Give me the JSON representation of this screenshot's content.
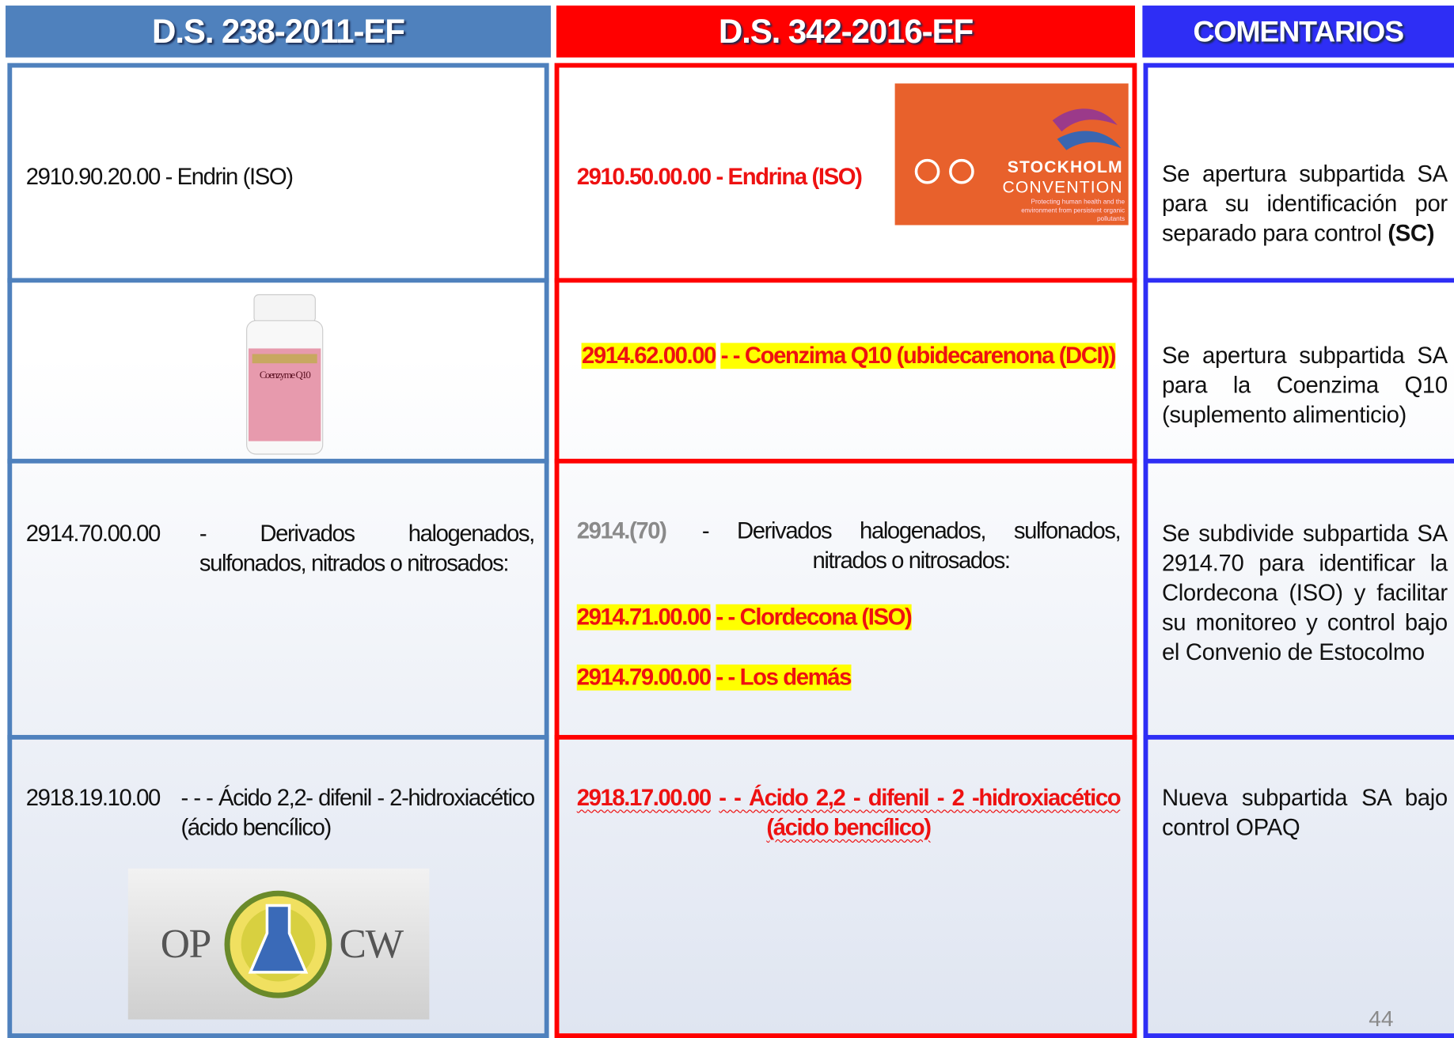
{
  "header": {
    "columns": [
      "D.S. 238-2011-EF",
      "D.S. 342-2016-EF",
      "COMENTARIOS"
    ]
  },
  "rows": [
    {
      "old": {
        "code": "2910.90.20.00",
        "text": "- Endrin (ISO)"
      },
      "new": [
        {
          "code": "2910.50.00.00",
          "text": "- Endrina (ISO)"
        }
      ],
      "logo": {
        "title": "STOCKHOLM",
        "subtitle": "CONVENTION",
        "tagline": "Protecting human health and the environment from persistent organic pollutants"
      },
      "comment": [
        "Se apertura subpartida SA para su identificación por separado para control",
        "(SC)"
      ]
    },
    {
      "image": {
        "label": "Coenzyme Q10"
      },
      "new": [
        {
          "code": "2914.62.00.00",
          "text": "- - Coenzima Q10 (ubidecarenona (DCI))"
        }
      ],
      "comment": [
        "Se apertura subpartida SA para la Coenzima Q10 (suplemento alimenticio)"
      ]
    },
    {
      "old": {
        "code": "2914.70.00.00",
        "text": "- Derivados halogenados, sulfonados, nitrados o nitrosados:"
      },
      "new": [
        {
          "code": "2914.(70)",
          "text": "- Derivados halogenados, sulfonados, nitrados o nitrosados:"
        },
        {
          "code": "2914.71.00.00",
          "text": "- - Clordecona (ISO)"
        },
        {
          "code": "2914.79.00.00",
          "text": "- - Los demás"
        }
      ],
      "comment": [
        "Se subdivide subpartida SA 2914.70 para identificar la Clordecona (ISO) y facilitar su monitoreo y control bajo el Convenio de Estocolmo"
      ]
    },
    {
      "old": {
        "code": "2918.19.10.00",
        "text": "- - - Ácido 2,2- difenil - 2-hidroxiacético (ácido bencílico)"
      },
      "logo": {
        "left": "OP",
        "right": "CW"
      },
      "new": [
        {
          "code": "2918.17.00.00",
          "text": "- - Ácido 2,2 - difenil - 2 -hidroxiacético (ácido bencílico)"
        }
      ],
      "comment": [
        "Nueva subpartida SA bajo control OPAQ"
      ]
    }
  ],
  "page_number": "44"
}
